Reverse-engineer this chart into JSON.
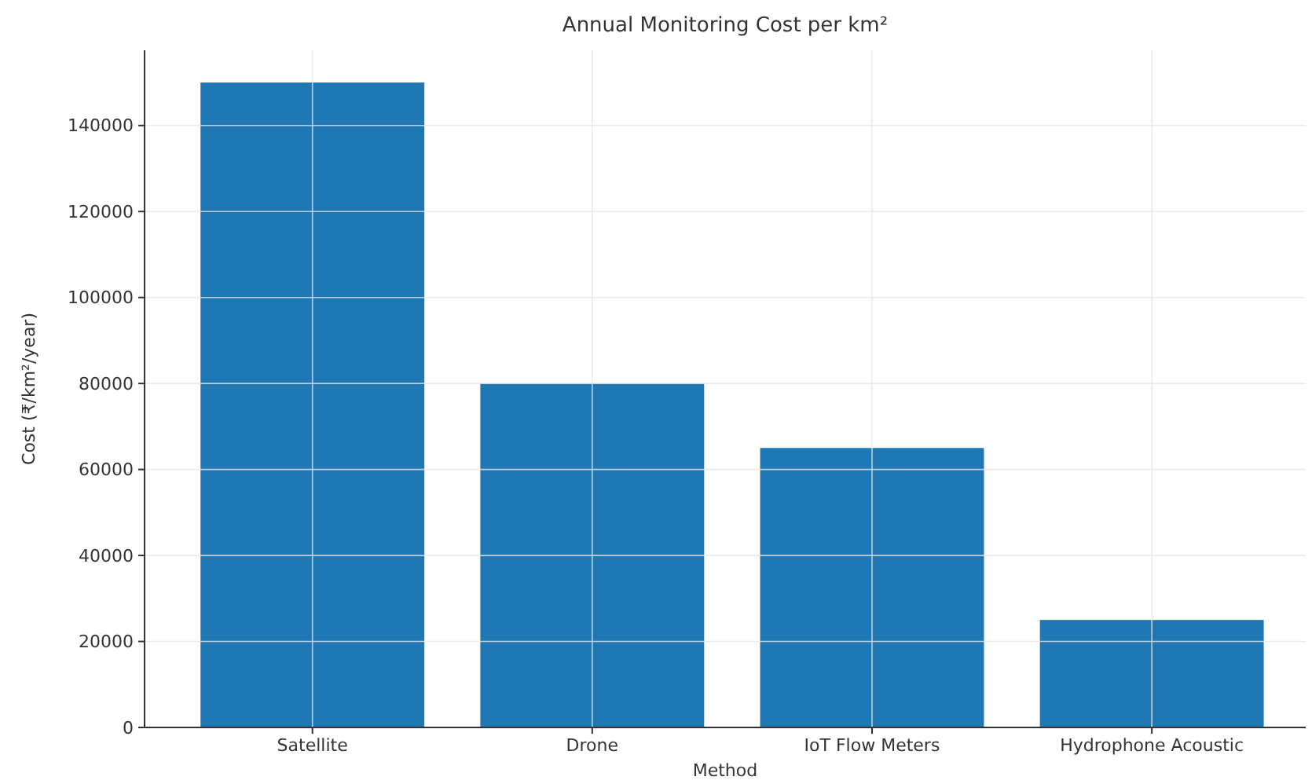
{
  "chart_data": {
    "type": "bar",
    "title": "Annual Monitoring Cost per km²",
    "xlabel": "Method",
    "ylabel": "Cost (₹/km²/year)",
    "categories": [
      "Satellite",
      "Drone",
      "IoT Flow Meters",
      "Hydrophone Acoustic"
    ],
    "values": [
      150000,
      80000,
      65000,
      25000
    ],
    "color": "#1f77b4",
    "ylim": [
      0,
      157500
    ],
    "yticks": [
      0,
      20000,
      40000,
      60000,
      80000,
      100000,
      120000,
      140000
    ],
    "grid": true
  }
}
